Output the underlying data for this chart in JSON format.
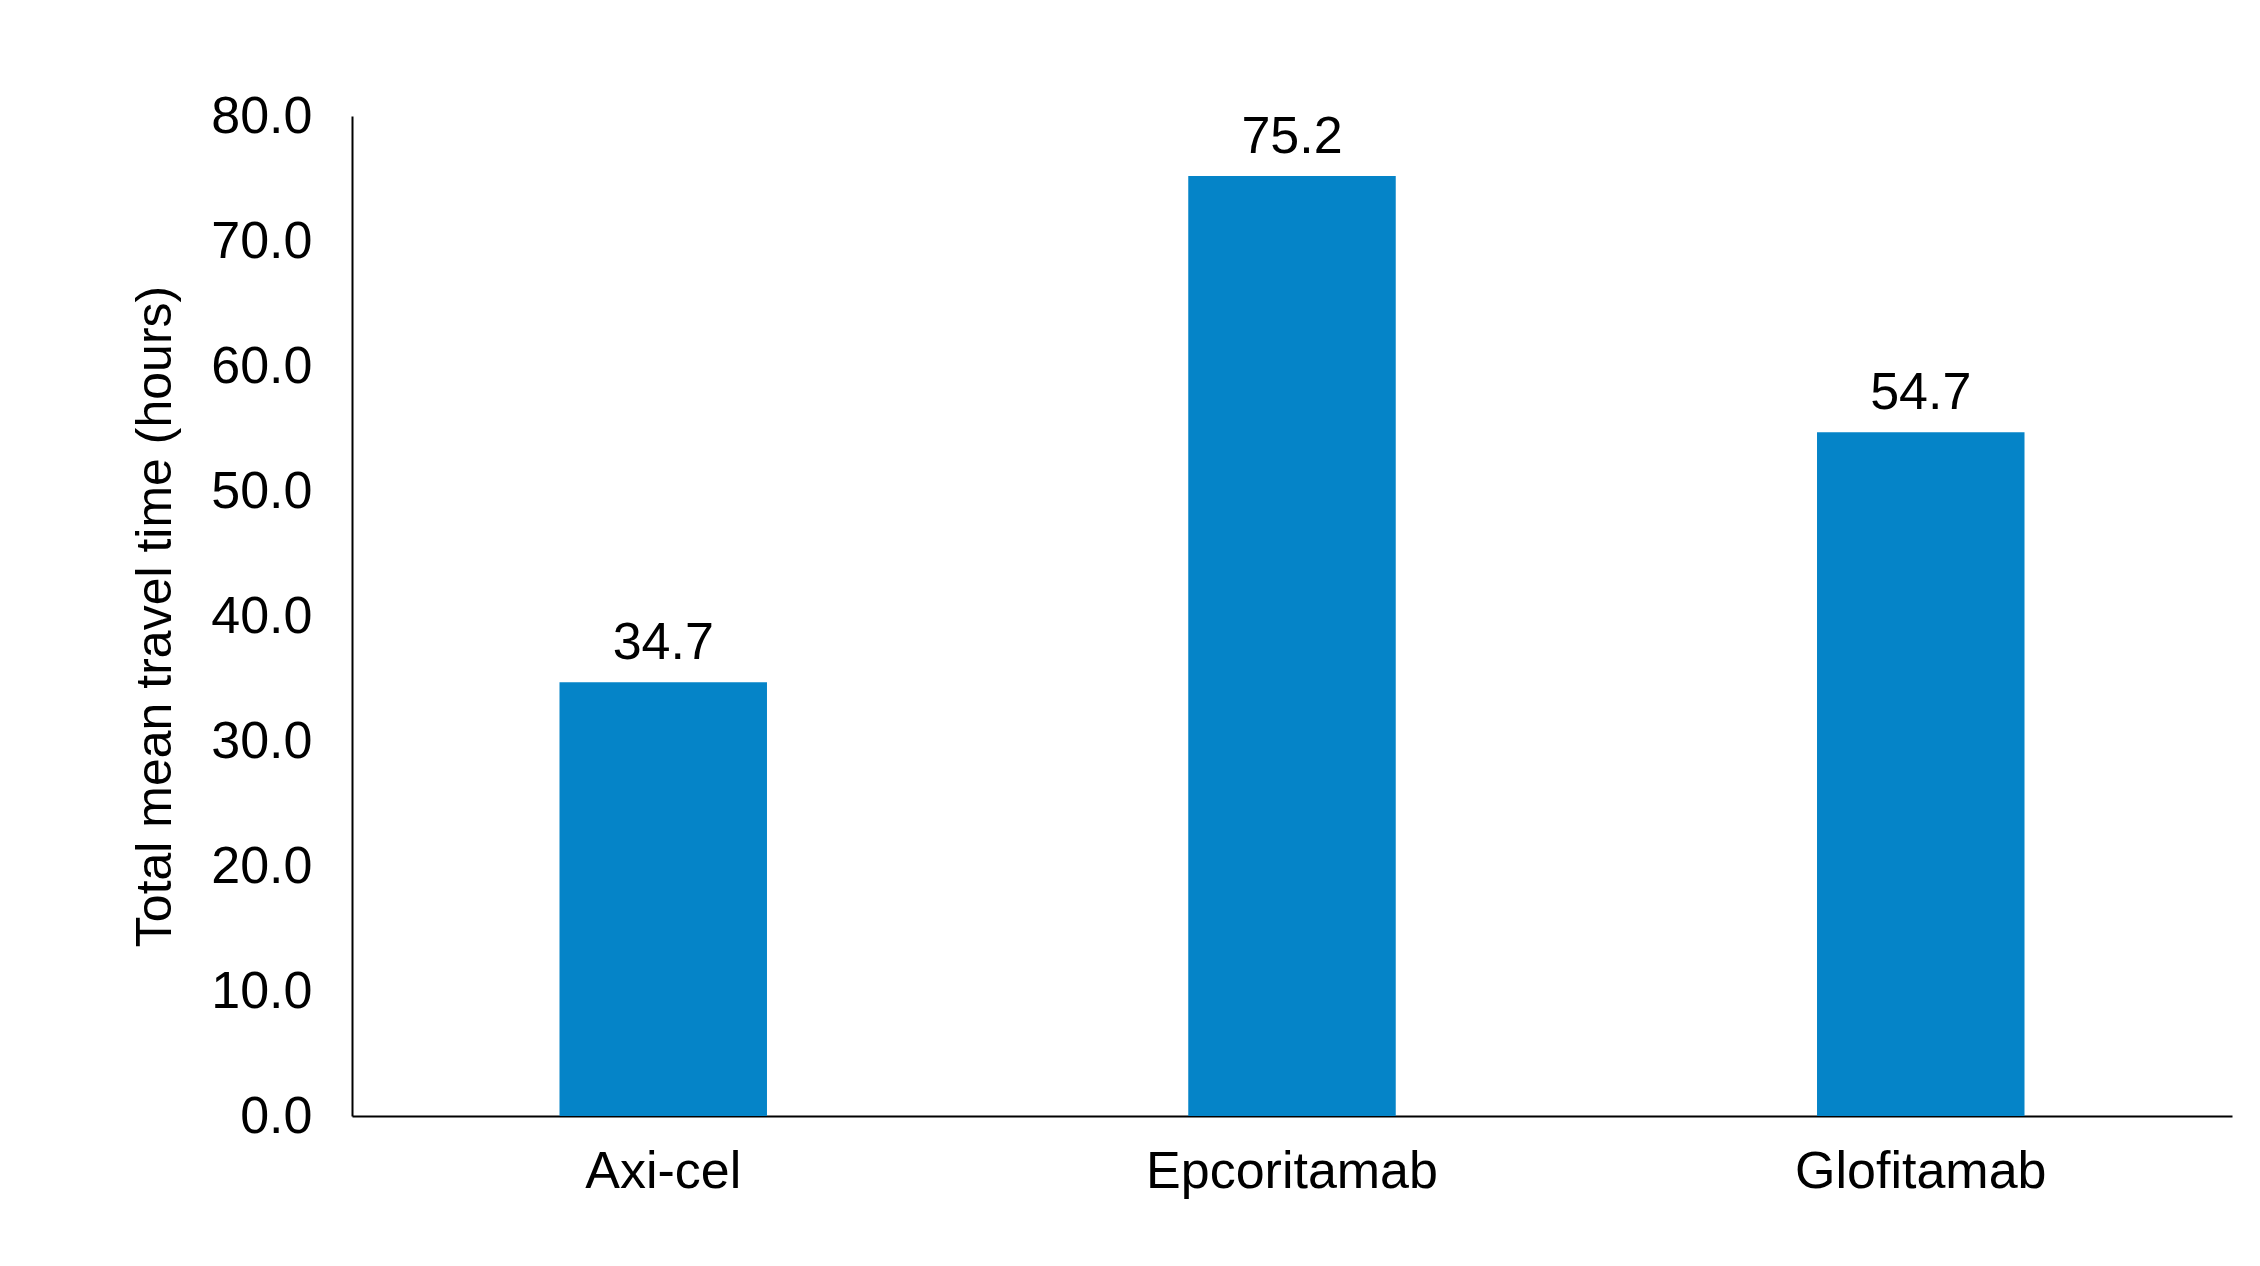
{
  "chart_data": {
    "type": "bar",
    "ylabel": "Total mean travel time (hours)",
    "categories": [
      "Axi-cel",
      "Epcoritamab",
      "Glofitamab"
    ],
    "values": [
      34.7,
      75.2,
      54.7
    ],
    "color": "#0584c8",
    "ylim": [
      0,
      80
    ],
    "yticks": [
      {
        "value": 0,
        "label": "0.0"
      },
      {
        "value": 10,
        "label": "10.0"
      },
      {
        "value": 20,
        "label": "20.0"
      },
      {
        "value": 30,
        "label": "30.0"
      },
      {
        "value": 40,
        "label": "40.0"
      },
      {
        "value": 50,
        "label": "50.0"
      },
      {
        "value": 60,
        "label": "60.0"
      },
      {
        "value": 70,
        "label": "70.0"
      },
      {
        "value": 80,
        "label": "80.0"
      }
    ],
    "data_labels": true,
    "grid": false
  }
}
